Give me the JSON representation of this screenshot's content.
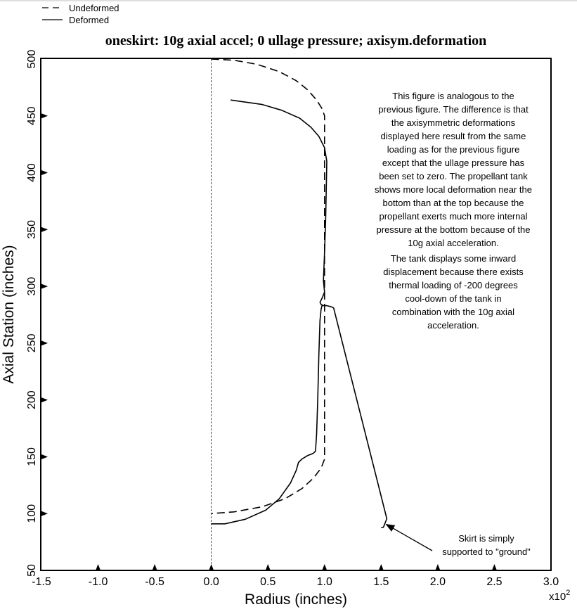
{
  "chart_data": {
    "type": "line",
    "title": "oneskirt: 10g axial accel; 0 ullage pressure; axisym.deformation",
    "xlabel": "Radius (inches)",
    "ylabel": "Axial Station (inches)",
    "x_multiplier_label": "x10",
    "x_multiplier_exponent": "2",
    "xlim": [
      -1.5,
      3.0
    ],
    "ylim": [
      50,
      500
    ],
    "xticks": [
      -1.5,
      -1.0,
      -0.5,
      0.0,
      0.5,
      1.0,
      1.5,
      2.0,
      2.5,
      3.0
    ],
    "xtick_labels": [
      "-1.5",
      "-1.0",
      "-0.5",
      "0.0",
      "0.5",
      "1.0",
      "1.5",
      "2.0",
      "2.5",
      "3.0"
    ],
    "yticks": [
      50,
      100,
      150,
      200,
      250,
      300,
      350,
      400,
      450,
      500
    ],
    "ytick_labels": [
      "50",
      "100",
      "150",
      "200",
      "250",
      "300",
      "350",
      "400",
      "450",
      "500"
    ],
    "grid": false,
    "legend_position": "top-left",
    "reference_line_x": 0.0,
    "series": [
      {
        "name": "Undeformed",
        "style": "dashed",
        "color": "#000000",
        "points": [
          [
            0.0,
            500
          ],
          [
            0.2,
            499
          ],
          [
            0.4,
            495.5
          ],
          [
            0.6,
            489
          ],
          [
            0.75,
            481
          ],
          [
            0.85,
            473
          ],
          [
            0.93,
            464
          ],
          [
            0.98,
            456
          ],
          [
            1.0,
            450
          ],
          [
            1.0,
            400
          ],
          [
            1.0,
            350
          ],
          [
            1.0,
            300
          ],
          [
            1.0,
            285
          ],
          [
            1.0,
            250
          ],
          [
            1.0,
            200
          ],
          [
            1.0,
            150
          ],
          [
            1.0,
            148
          ],
          [
            0.97,
            140
          ],
          [
            0.9,
            131
          ],
          [
            0.8,
            122
          ],
          [
            0.65,
            113
          ],
          [
            0.45,
            106
          ],
          [
            0.2,
            101.5
          ],
          [
            0.0,
            100
          ]
        ]
      },
      {
        "name": "Deformed",
        "style": "solid",
        "color": "#000000",
        "points": [
          [
            0.17,
            464
          ],
          [
            0.45,
            460
          ],
          [
            0.62,
            455
          ],
          [
            0.78,
            448
          ],
          [
            0.88,
            440
          ],
          [
            0.95,
            432
          ],
          [
            1.0,
            422
          ],
          [
            1.02,
            410
          ],
          [
            1.01,
            360
          ],
          [
            1.0,
            330
          ],
          [
            0.99,
            305
          ],
          [
            1.0,
            295
          ],
          [
            0.98,
            290
          ],
          [
            0.96,
            286
          ],
          [
            0.97,
            284
          ],
          [
            0.99,
            283
          ],
          [
            1.02,
            283
          ],
          [
            1.06,
            282
          ],
          [
            1.08,
            281
          ],
          [
            1.55,
            95.5
          ],
          [
            1.52,
            88
          ],
          [
            1.5,
            87.5
          ]
        ],
        "branches": [
          [
            [
              0.0,
              91
            ],
            [
              0.12,
              91
            ],
            [
              0.3,
              95
            ],
            [
              0.48,
              103
            ],
            [
              0.6,
              113
            ],
            [
              0.7,
              127
            ],
            [
              0.75,
              138
            ],
            [
              0.77,
              145
            ],
            [
              0.8,
              148
            ],
            [
              0.85,
              151
            ],
            [
              0.9,
              153
            ],
            [
              0.92,
              155
            ],
            [
              0.93,
              170
            ],
            [
              0.94,
              200
            ],
            [
              0.95,
              240
            ],
            [
              0.96,
              270
            ],
            [
              0.97,
              280
            ],
            [
              0.98,
              284
            ]
          ]
        ]
      }
    ],
    "annotations": [
      {
        "id": "main-note",
        "paragraphs": [
          [
            "This figure is analogous to the",
            "previous figure. The difference is that",
            "the axisymmetric deformations",
            "displayed here result from the same",
            "loading as for the previous figure",
            "except that the ullage pressure has",
            "been set to zero. The propellant tank",
            "shows more local deformation near the",
            "bottom than at the top because the",
            "propellant exerts much more internal",
            "pressure at the bottom because of the",
            "10g axial acceleration."
          ],
          [
            "The tank displays some inward",
            "displacement because there exists",
            "thermal loading of -200 degrees",
            "cool-down of the tank in",
            "combination with the 10g axial",
            "acceleration."
          ]
        ]
      },
      {
        "id": "skirt-note",
        "lines": [
          "Skirt is simply",
          "supported to \"ground\""
        ],
        "arrow_to": [
          1.52,
          88
        ]
      }
    ]
  }
}
